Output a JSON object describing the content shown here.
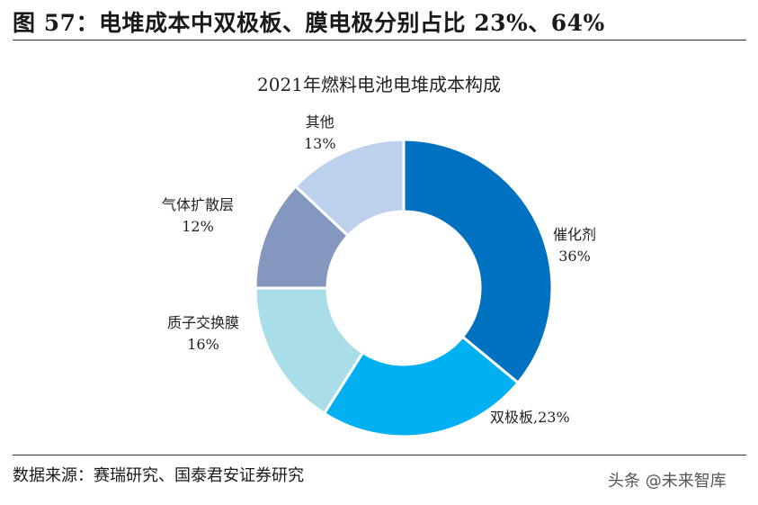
{
  "figure_title": "图 57：电堆成本中双极板、膜电极分别占比 23%、64%",
  "source_note": "数据来源：赛瑞研究、国泰君安证券研究",
  "watermark": "头条 @未来智库",
  "chart_data": {
    "type": "pie",
    "donut": true,
    "title": "2021年燃料电池电堆成本构成",
    "categories": [
      "催化剂",
      "双极板",
      "质子交换膜",
      "气体扩散层",
      "其他"
    ],
    "values": [
      36,
      23,
      16,
      12,
      13
    ],
    "unit": "%",
    "label_texts": [
      "36%",
      "23%",
      "16%",
      "12%",
      "13%"
    ],
    "colors": [
      "#0070C0",
      "#00B0F0",
      "#A9DDE8",
      "#8497BF",
      "#BDD1EC"
    ],
    "start": "top",
    "direction": "clockwise",
    "legend": "none"
  }
}
